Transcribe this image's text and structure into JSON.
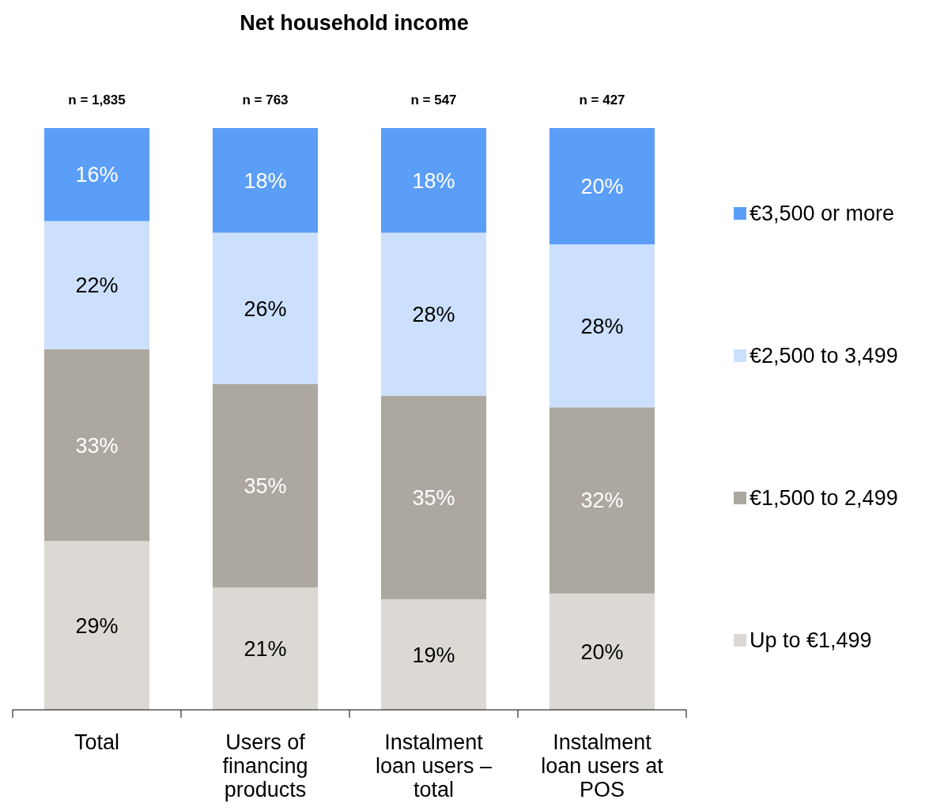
{
  "chart_data": {
    "type": "bar",
    "stacked": true,
    "title": "Net household income",
    "categories": [
      "Total",
      "Users of financing products",
      "Instalment loan users – total",
      "Instalment loan users at POS"
    ],
    "series": [
      {
        "name": "Up to €1,499",
        "color": "#dcd9d5",
        "values": [
          29,
          21,
          19,
          20
        ],
        "value_labels": [
          "29%",
          "21%",
          "19%",
          "20%"
        ]
      },
      {
        "name": "€1,500 to 2,499",
        "color": "#aca8a0",
        "values": [
          33,
          35,
          35,
          32
        ],
        "value_labels": [
          "33%",
          "35%",
          "35%",
          "32%"
        ]
      },
      {
        "name": "€2,500 to 3,499",
        "color": "#cce0fd",
        "values": [
          22,
          26,
          28,
          28
        ],
        "value_labels": [
          "22%",
          "26%",
          "28%",
          "28%"
        ]
      },
      {
        "name": "€3,500 or more",
        "color": "#5b9ef8",
        "values": [
          16,
          18,
          18,
          20
        ],
        "value_labels": [
          "16%",
          "18%",
          "18%",
          "20%"
        ]
      }
    ],
    "annotations": [
      "n = 1,835",
      "n = 763",
      "n = 547",
      "n = 427"
    ],
    "legend": "right",
    "grid": false
  }
}
